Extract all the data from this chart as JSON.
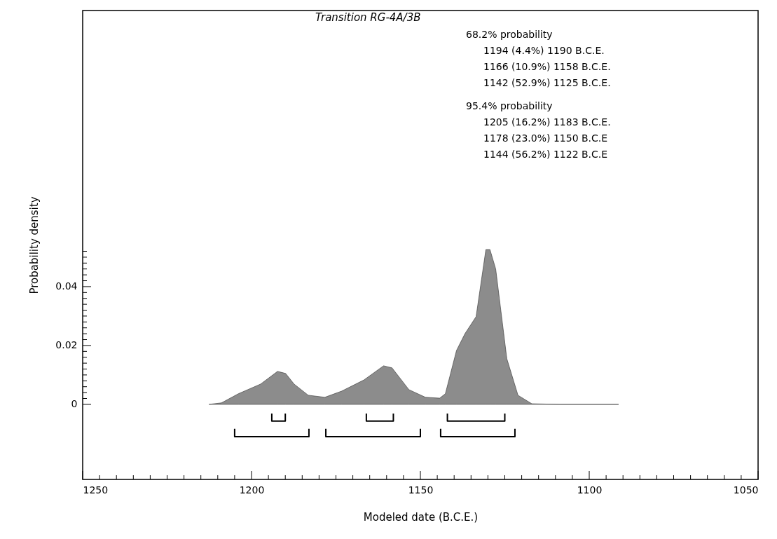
{
  "chart_data": {
    "type": "area",
    "title": "Transition RG-4A/3B",
    "xlabel": "Modeled date (B.C.E.)",
    "ylabel": "Probability density",
    "annotations": [
      "68.2% probability",
      "1194 (4.4%) 1190 B.C.E.",
      "1166 (10.9%) 1158 B.C.E.",
      "1142 (52.9%) 1125 B.C.E.",
      "95.4% probability",
      "1205 (16.2%) 1183 B.C.E.",
      "1178 (23.0%) 1150 B.C.E",
      "1144 (56.2%) 1122 B.C.E"
    ],
    "xlim": [
      1250,
      1050
    ],
    "ylim": [
      -0.0255,
      0.1338
    ],
    "xticks": [
      1250,
      {
        "value": 1245,
        "label": null
      },
      {
        "value": 1240,
        "label": null
      },
      {
        "value": 1235,
        "label": null
      },
      {
        "value": 1230,
        "label": null
      },
      {
        "value": 1225,
        "label": null
      },
      {
        "value": 1220,
        "label": null
      },
      {
        "value": 1215,
        "label": null
      },
      {
        "value": 1210,
        "label": null
      },
      {
        "value": 1205,
        "label": null
      },
      1200,
      {
        "value": 1195,
        "label": null
      },
      {
        "value": 1190,
        "label": null
      },
      {
        "value": 1185,
        "label": null
      },
      {
        "value": 1180,
        "label": null
      },
      {
        "value": 1175,
        "label": null
      },
      {
        "value": 1170,
        "label": null
      },
      {
        "value": 1165,
        "label": null
      },
      {
        "value": 1160,
        "label": null
      },
      {
        "value": 1155,
        "label": null
      },
      1150,
      {
        "value": 1145,
        "label": null
      },
      {
        "value": 1140,
        "label": null
      },
      {
        "value": 1135,
        "label": null
      },
      {
        "value": 1130,
        "label": null
      },
      {
        "value": 1125,
        "label": null
      },
      {
        "value": 1120,
        "label": null
      },
      {
        "value": 1115,
        "label": null
      },
      {
        "value": 1110,
        "label": null
      },
      {
        "value": 1105,
        "label": null
      },
      1100,
      {
        "value": 1095,
        "label": null
      },
      {
        "value": 1090,
        "label": null
      },
      {
        "value": 1085,
        "label": null
      },
      {
        "value": 1080,
        "label": null
      },
      {
        "value": 1075,
        "label": null
      },
      {
        "value": 1070,
        "label": null
      },
      {
        "value": 1065,
        "label": null
      },
      {
        "value": 1060,
        "label": null
      },
      {
        "value": 1055,
        "label": null
      },
      1050
    ],
    "yticks": [
      0,
      {
        "value": 0.002,
        "label": null
      },
      {
        "value": 0.004,
        "label": null
      },
      {
        "value": 0.006,
        "label": null
      },
      {
        "value": 0.008,
        "label": null
      },
      {
        "value": 0.01,
        "label": null
      },
      {
        "value": 0.012,
        "label": null
      },
      {
        "value": 0.014,
        "label": null
      },
      {
        "value": 0.016,
        "label": null
      },
      {
        "value": 0.018,
        "label": null
      },
      0.02,
      {
        "value": 0.022,
        "label": null
      },
      {
        "value": 0.024,
        "label": null
      },
      {
        "value": 0.026,
        "label": null
      },
      {
        "value": 0.028,
        "label": null
      },
      {
        "value": 0.03,
        "label": null
      },
      {
        "value": 0.032,
        "label": null
      },
      {
        "value": 0.034,
        "label": null
      },
      {
        "value": 0.036,
        "label": null
      },
      {
        "value": 0.038,
        "label": null
      },
      0.04,
      {
        "value": 0.042,
        "label": null
      },
      {
        "value": 0.044,
        "label": null
      },
      {
        "value": 0.046,
        "label": null
      },
      {
        "value": 0.048,
        "label": null
      },
      {
        "value": 0.05,
        "label": null
      },
      {
        "value": 0.052,
        "label": null
      }
    ],
    "series": [
      {
        "color": "#8c8c8c",
        "x": [
          1212.6,
          1208.9,
          1203.9,
          1197.3,
          1192.3,
          1189.9,
          1187.4,
          1183.2,
          1178.3,
          1173.3,
          1166.7,
          1160.9,
          1158.4,
          1153.4,
          1148.5,
          1144.3,
          1142.6,
          1139.3,
          1136.8,
          1133.5,
          1130.6,
          1129.4,
          1127.7,
          1124.4,
          1121.1,
          1117.0,
          1108.7,
          1091.3
        ],
        "values": [
          0,
          0.0005,
          0.0036,
          0.0069,
          0.0112,
          0.0105,
          0.0069,
          0.0031,
          0.0024,
          0.0045,
          0.0083,
          0.0131,
          0.0124,
          0.005,
          0.0024,
          0.0021,
          0.0036,
          0.0183,
          0.024,
          0.0298,
          0.0526,
          0.0526,
          0.046,
          0.0155,
          0.0031,
          0.0002,
          0,
          0
        ]
      },
      {
        "type": "line",
        "color": "#000000",
        "x": [
          1194,
          1194,
          1190,
          1190
        ],
        "values": [
          -0.0031,
          -0.0057,
          -0.0057,
          -0.0031
        ]
      },
      {
        "type": "line",
        "color": "#000000",
        "x": [
          1166,
          1166,
          1158,
          1158
        ],
        "values": [
          -0.0031,
          -0.0057,
          -0.0057,
          -0.0031
        ]
      },
      {
        "type": "line",
        "color": "#000000",
        "x": [
          1142,
          1142,
          1125,
          1125
        ],
        "values": [
          -0.0031,
          -0.0057,
          -0.0057,
          -0.0031
        ]
      },
      {
        "type": "line",
        "color": "#000000",
        "x": [
          1205,
          1205,
          1183,
          1183
        ],
        "values": [
          -0.0083,
          -0.011,
          -0.011,
          -0.0083
        ]
      },
      {
        "type": "line",
        "color": "#000000",
        "x": [
          1178,
          1178,
          1150,
          1150
        ],
        "values": [
          -0.0083,
          -0.011,
          -0.011,
          -0.0083
        ]
      },
      {
        "type": "line",
        "color": "#000000",
        "x": [
          1144,
          1144,
          1122,
          1122
        ],
        "values": [
          -0.0083,
          -0.011,
          -0.011,
          -0.0083
        ]
      }
    ]
  }
}
